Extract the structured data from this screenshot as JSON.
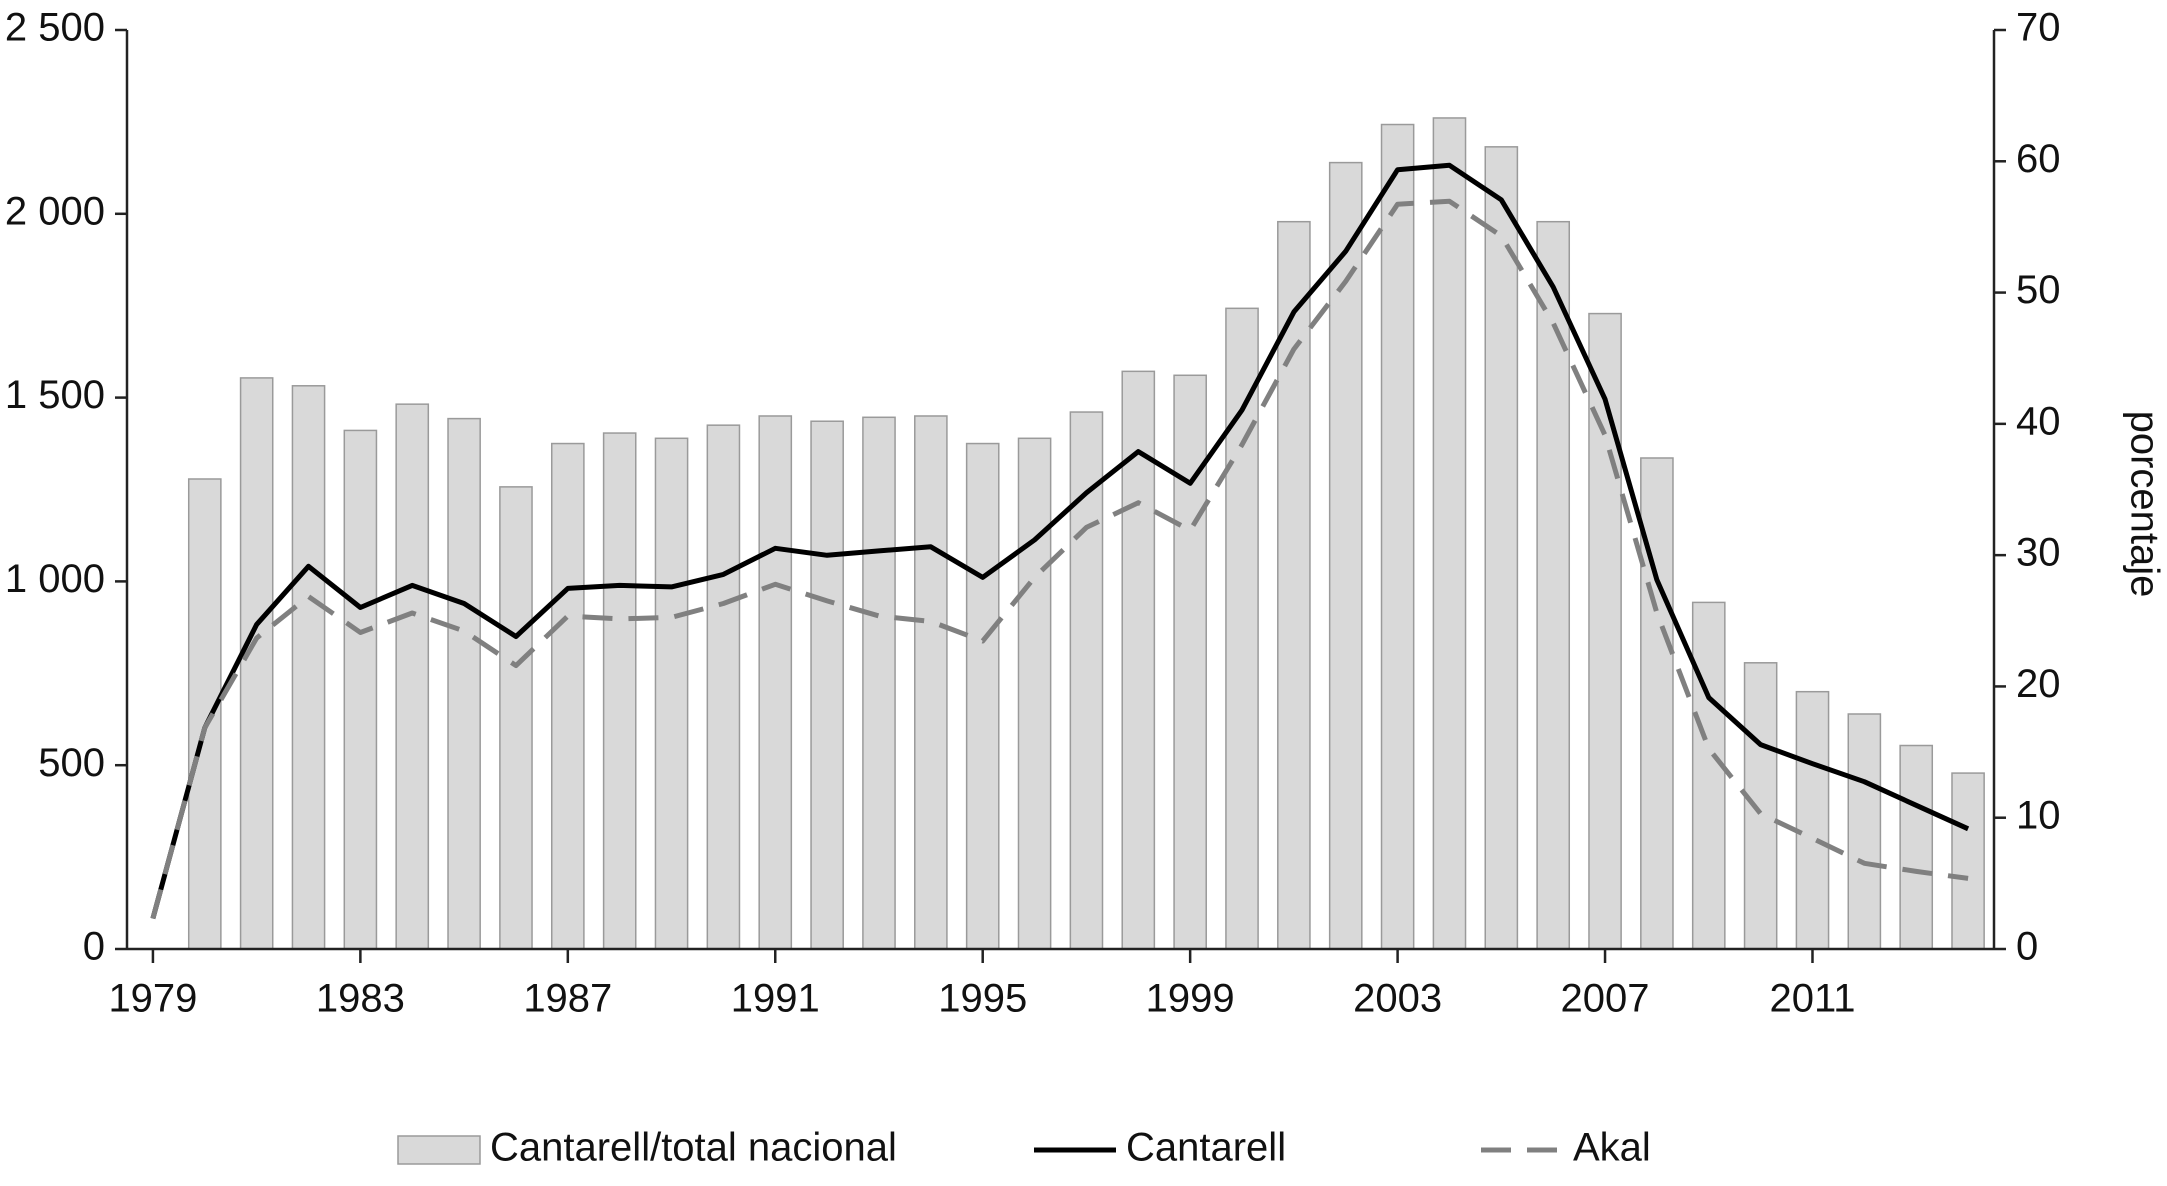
{
  "chart_data": {
    "type": "combo",
    "x": [
      1979,
      1980,
      1981,
      1982,
      1983,
      1984,
      1985,
      1986,
      1987,
      1988,
      1989,
      1990,
      1991,
      1992,
      1993,
      1994,
      1995,
      1996,
      1997,
      1998,
      1999,
      2000,
      2001,
      2002,
      2003,
      2004,
      2005,
      2006,
      2007,
      2008,
      2009,
      2010,
      2011,
      2012,
      2013,
      2014
    ],
    "xlim": [
      1978.5,
      2014.5
    ],
    "xticks": [
      1979,
      1983,
      1987,
      1991,
      1995,
      1999,
      2003,
      2007,
      2011
    ],
    "ylim": [
      0,
      2500
    ],
    "yticks": [
      0,
      500,
      {
        "value": 1000,
        "label": "1 000"
      },
      {
        "value": 1500,
        "label": "1 500"
      },
      {
        "value": 2000,
        "label": "2 000"
      },
      {
        "value": 2500,
        "label": "2 500"
      }
    ],
    "y2lim": [
      0,
      70
    ],
    "y2ticks": [
      0,
      10,
      20,
      30,
      40,
      50,
      60,
      70
    ],
    "y2_label": "porcentaje",
    "grid": false,
    "series": [
      {
        "name": "Cantarell/total nacional",
        "type": "bar",
        "axis": "y2",
        "color": "#d9d9d9",
        "values": [
          null,
          35.8,
          43.5,
          42.9,
          39.5,
          41.5,
          40.4,
          35.2,
          38.5,
          39.3,
          38.9,
          39.9,
          40.6,
          40.2,
          40.5,
          40.6,
          38.5,
          38.9,
          40.9,
          44.0,
          43.7,
          48.8,
          55.4,
          59.9,
          62.8,
          63.3,
          61.1,
          55.4,
          48.4,
          37.4,
          26.4,
          21.8,
          19.6,
          17.9,
          15.5,
          13.4
        ]
      },
      {
        "name": "Cantarell",
        "type": "line",
        "line_style": "solid",
        "color": "#000000",
        "values": [
          83,
          602,
          883,
          1041,
          929,
          989,
          940,
          850,
          981,
          989,
          985,
          1019,
          1090,
          1071,
          1083,
          1094,
          1011,
          1113,
          1241,
          1353,
          1267,
          1466,
          1733,
          1898,
          2120,
          2132,
          2038,
          1801,
          1496,
          1004,
          684,
          556,
          504,
          455,
          391,
          327
        ]
      },
      {
        "name": "Akal",
        "type": "line",
        "line_style": "dashed",
        "color": "#808080",
        "values": [
          83,
          602,
          846,
          959,
          861,
          914,
          865,
          771,
          906,
          898,
          902,
          940,
          992,
          947,
          906,
          891,
          838,
          1011,
          1147,
          1214,
          1139,
          1372,
          1632,
          1816,
          2026,
          2034,
          1940,
          1703,
          1398,
          914,
          545,
          368,
          301,
          233,
          211,
          192
        ]
      }
    ]
  }
}
